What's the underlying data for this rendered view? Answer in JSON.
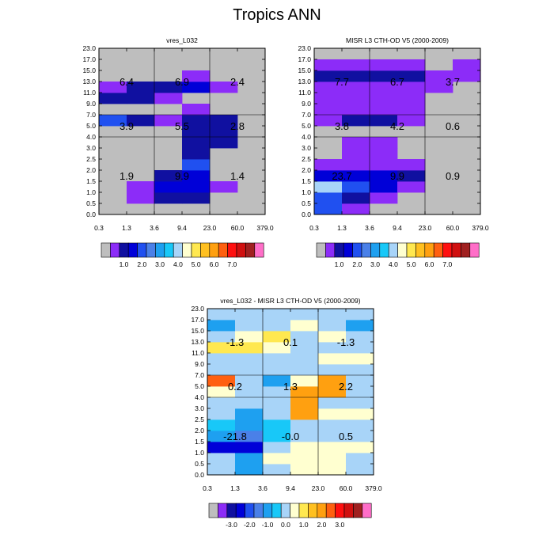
{
  "title": "Tropics ANN",
  "colors": {
    "gray": "#bebebe",
    "outline": "#000000",
    "grid": "#000000"
  },
  "chart_data": [
    {
      "id": "p1",
      "type": "heatmap",
      "title": "vres_L032",
      "x_ticks": [
        "0.3",
        "1.3",
        "3.6",
        "9.4",
        "23.0",
        "60.0",
        "379.0"
      ],
      "y_ticks": [
        "0.0",
        "0.5",
        "1.0",
        "1.5",
        "2.0",
        "2.5",
        "3.0",
        "4.0",
        "5.0",
        "7.0",
        "9.0",
        "11.0",
        "13.0",
        "15.0",
        "17.0",
        "23.0"
      ],
      "cells": [
        {
          "r": 0,
          "c": 1,
          "v": 0
        },
        {
          "r": 0,
          "c": 2,
          "v": 0
        },
        {
          "r": 0,
          "c": 3,
          "v": 0
        },
        {
          "r": 1,
          "c": 1,
          "v": 1.0
        },
        {
          "r": 1,
          "c": 2,
          "v": 1.5
        },
        {
          "r": 1,
          "c": 3,
          "v": 2.0
        },
        {
          "r": 2,
          "c": 1,
          "v": 1.0
        },
        {
          "r": 2,
          "c": 2,
          "v": 2.5
        },
        {
          "r": 2,
          "c": 3,
          "v": 2.5
        },
        {
          "r": 2,
          "c": 4,
          "v": 1.0
        },
        {
          "r": 3,
          "c": 2,
          "v": 2.0
        },
        {
          "r": 3,
          "c": 3,
          "v": 2.5
        },
        {
          "r": 4,
          "c": 3,
          "v": 3.0
        },
        {
          "r": 5,
          "c": 3,
          "v": 2.0
        },
        {
          "r": 6,
          "c": 3,
          "v": 2.0
        },
        {
          "r": 6,
          "c": 4,
          "v": 2.0
        },
        {
          "r": 7,
          "c": 3,
          "v": 2.0
        },
        {
          "r": 7,
          "c": 4,
          "v": 2.0
        },
        {
          "r": 8,
          "c": 0,
          "v": 3.0
        },
        {
          "r": 8,
          "c": 1,
          "v": 2.0
        },
        {
          "r": 8,
          "c": 2,
          "v": 1.0
        },
        {
          "r": 8,
          "c": 3,
          "v": 2.0
        },
        {
          "r": 8,
          "c": 4,
          "v": 2.0
        },
        {
          "r": 9,
          "c": 3,
          "v": 1.0
        },
        {
          "r": 10,
          "c": 0,
          "v": 2.0
        },
        {
          "r": 10,
          "c": 1,
          "v": 2.0
        },
        {
          "r": 10,
          "c": 2,
          "v": 1.0
        },
        {
          "r": 11,
          "c": 0,
          "v": 1.0
        },
        {
          "r": 11,
          "c": 1,
          "v": 2.0
        },
        {
          "r": 11,
          "c": 2,
          "v": 2.0
        },
        {
          "r": 11,
          "c": 3,
          "v": 2.5
        },
        {
          "r": 11,
          "c": 4,
          "v": 1.0
        },
        {
          "r": 12,
          "c": 3,
          "v": 1.0
        }
      ],
      "box_labels": [
        {
          "col": 0,
          "group": "low",
          "text": "1.9"
        },
        {
          "col": 1,
          "group": "low",
          "text": "9.9"
        },
        {
          "col": 2,
          "group": "low",
          "text": "1.4"
        },
        {
          "col": 0,
          "group": "mid",
          "text": "3.9"
        },
        {
          "col": 1,
          "group": "mid",
          "text": "5.5"
        },
        {
          "col": 2,
          "group": "mid",
          "text": "2.8"
        },
        {
          "col": 0,
          "group": "high",
          "text": "6.4"
        },
        {
          "col": 1,
          "group": "high",
          "text": "6.9"
        },
        {
          "col": 2,
          "group": "high",
          "text": "2.4"
        }
      ],
      "colorbar": {
        "colors": [
          "#bebebe",
          "#8c2cf8",
          "#1010a0",
          "#0000d8",
          "#2050f0",
          "#4a80e8",
          "#1ea0f0",
          "#18c8f8",
          "#a8d4f8",
          "#ffffd0",
          "#ffe850",
          "#ffc020",
          "#ffa010",
          "#ff6010",
          "#ff1010",
          "#d01010",
          "#a02020",
          "#ff6ec8"
        ],
        "labels": [
          "1.0",
          "2.0",
          "3.0",
          "4.0",
          "5.0",
          "6.0",
          "7.0"
        ]
      }
    },
    {
      "id": "p2",
      "type": "heatmap",
      "title": "MISR L3 CTH-OD V5 (2000-2009)",
      "x_ticks": [
        "0.3",
        "1.3",
        "3.6",
        "9.4",
        "23.0",
        "60.0",
        "379.0"
      ],
      "y_ticks": [
        "0.0",
        "0.5",
        "1.0",
        "1.5",
        "2.0",
        "2.5",
        "3.0",
        "4.0",
        "5.0",
        "7.0",
        "9.0",
        "11.0",
        "13.0",
        "15.0",
        "17.0",
        "23.0"
      ],
      "cells": [
        {
          "r": 0,
          "c": 0,
          "v": 3.0
        },
        {
          "r": 0,
          "c": 1,
          "v": 1.0
        },
        {
          "r": 0,
          "c": 2,
          "v": 0
        },
        {
          "r": 1,
          "c": 0,
          "v": 3.0
        },
        {
          "r": 1,
          "c": 1,
          "v": 2.0
        },
        {
          "r": 1,
          "c": 2,
          "v": 1.0
        },
        {
          "r": 2,
          "c": 0,
          "v": 4.0
        },
        {
          "r": 2,
          "c": 1,
          "v": 3.0
        },
        {
          "r": 2,
          "c": 2,
          "v": 2.5
        },
        {
          "r": 2,
          "c": 3,
          "v": 1.0
        },
        {
          "r": 3,
          "c": 0,
          "v": 2.5
        },
        {
          "r": 3,
          "c": 1,
          "v": 2.5
        },
        {
          "r": 3,
          "c": 2,
          "v": 2.5
        },
        {
          "r": 3,
          "c": 3,
          "v": 2.0
        },
        {
          "r": 4,
          "c": 0,
          "v": 1.0
        },
        {
          "r": 4,
          "c": 1,
          "v": 1.0
        },
        {
          "r": 4,
          "c": 2,
          "v": 1.0
        },
        {
          "r": 4,
          "c": 3,
          "v": 1.0
        },
        {
          "r": 5,
          "c": 1,
          "v": 1.0
        },
        {
          "r": 5,
          "c": 2,
          "v": 1.0
        },
        {
          "r": 6,
          "c": 1,
          "v": 1.0
        },
        {
          "r": 6,
          "c": 2,
          "v": 1.0
        },
        {
          "r": 8,
          "c": 0,
          "v": 1.0
        },
        {
          "r": 8,
          "c": 1,
          "v": 2.0
        },
        {
          "r": 8,
          "c": 2,
          "v": 2.0
        },
        {
          "r": 8,
          "c": 3,
          "v": 1.0
        },
        {
          "r": 9,
          "c": 0,
          "v": 1.0
        },
        {
          "r": 9,
          "c": 1,
          "v": 1.0
        },
        {
          "r": 9,
          "c": 2,
          "v": 1.0
        },
        {
          "r": 9,
          "c": 3,
          "v": 1.0
        },
        {
          "r": 10,
          "c": 0,
          "v": 1.0
        },
        {
          "r": 10,
          "c": 1,
          "v": 1.0
        },
        {
          "r": 10,
          "c": 2,
          "v": 1.0
        },
        {
          "r": 10,
          "c": 3,
          "v": 1.0
        },
        {
          "r": 11,
          "c": 0,
          "v": 1.0
        },
        {
          "r": 11,
          "c": 1,
          "v": 1.0
        },
        {
          "r": 11,
          "c": 2,
          "v": 1.0
        },
        {
          "r": 11,
          "c": 3,
          "v": 1.0
        },
        {
          "r": 11,
          "c": 4,
          "v": 1.0
        },
        {
          "r": 12,
          "c": 0,
          "v": 2.0
        },
        {
          "r": 12,
          "c": 1,
          "v": 2.0
        },
        {
          "r": 12,
          "c": 2,
          "v": 2.0
        },
        {
          "r": 12,
          "c": 3,
          "v": 2.0
        },
        {
          "r": 12,
          "c": 4,
          "v": 1.0
        },
        {
          "r": 12,
          "c": 5,
          "v": 1.0
        },
        {
          "r": 13,
          "c": 0,
          "v": 1.0
        },
        {
          "r": 13,
          "c": 1,
          "v": 1.0
        },
        {
          "r": 13,
          "c": 2,
          "v": 1.0
        },
        {
          "r": 13,
          "c": 3,
          "v": 1.0
        },
        {
          "r": 13,
          "c": 5,
          "v": 1.0
        }
      ],
      "box_labels": [
        {
          "col": 0,
          "group": "low",
          "text": "23.7"
        },
        {
          "col": 1,
          "group": "low",
          "text": "9.9"
        },
        {
          "col": 2,
          "group": "low",
          "text": "0.9"
        },
        {
          "col": 0,
          "group": "mid",
          "text": "3.8"
        },
        {
          "col": 1,
          "group": "mid",
          "text": "4.2"
        },
        {
          "col": 2,
          "group": "mid",
          "text": "0.6"
        },
        {
          "col": 0,
          "group": "high",
          "text": "7.7"
        },
        {
          "col": 1,
          "group": "high",
          "text": "6.7"
        },
        {
          "col": 2,
          "group": "high",
          "text": "3.7"
        }
      ],
      "colorbar": {
        "colors": [
          "#bebebe",
          "#8c2cf8",
          "#1010a0",
          "#0000d8",
          "#2050f0",
          "#4a80e8",
          "#1ea0f0",
          "#18c8f8",
          "#a8d4f8",
          "#ffffd0",
          "#ffe850",
          "#ffc020",
          "#ffa010",
          "#ff6010",
          "#ff1010",
          "#d01010",
          "#a02020",
          "#ff6ec8"
        ],
        "labels": [
          "1.0",
          "2.0",
          "3.0",
          "4.0",
          "5.0",
          "6.0",
          "7.0"
        ]
      }
    },
    {
      "id": "p3",
      "type": "heatmap",
      "title": "vres_L032 - MISR L3 CTH-OD V5 (2000-2009)",
      "x_ticks": [
        "0.3",
        "1.3",
        "3.6",
        "9.4",
        "23.0",
        "60.0",
        "379.0"
      ],
      "y_ticks": [
        "0.0",
        "0.5",
        "1.0",
        "1.5",
        "2.0",
        "2.5",
        "3.0",
        "4.0",
        "5.0",
        "7.0",
        "9.0",
        "11.0",
        "13.0",
        "15.0",
        "17.0",
        "23.0"
      ],
      "cells": [
        {
          "r": 0,
          "c": 0,
          "v": -0.1
        },
        {
          "r": 0,
          "c": 1,
          "v": -1.2
        },
        {
          "r": 0,
          "c": 2,
          "v": -0.1
        },
        {
          "r": 0,
          "c": 3,
          "v": 0.1
        },
        {
          "r": 0,
          "c": 4,
          "v": 0.1
        },
        {
          "r": 0,
          "c": 5,
          "v": -0.1
        },
        {
          "r": 1,
          "c": 0,
          "v": -0.1
        },
        {
          "r": 1,
          "c": 1,
          "v": -0.6
        },
        {
          "r": 1,
          "c": 2,
          "v": 0.1
        },
        {
          "r": 1,
          "c": 3,
          "v": 0.1
        },
        {
          "r": 1,
          "c": 4,
          "v": 0.1
        },
        {
          "r": 1,
          "c": 5,
          "v": -0.1
        },
        {
          "r": 2,
          "c": 0,
          "v": -3.5
        },
        {
          "r": 2,
          "c": 1,
          "v": -3.5
        },
        {
          "r": 2,
          "c": 2,
          "v": -0.1
        },
        {
          "r": 2,
          "c": 3,
          "v": 0.1
        },
        {
          "r": 2,
          "c": 4,
          "v": 0.1
        },
        {
          "r": 2,
          "c": 5,
          "v": 0.1
        },
        {
          "r": 3,
          "c": 0,
          "v": -1.2
        },
        {
          "r": 3,
          "c": 1,
          "v": -1.5
        },
        {
          "r": 3,
          "c": 2,
          "v": -0.8
        },
        {
          "r": 3,
          "c": 3,
          "v": -0.1
        },
        {
          "r": 3,
          "c": 4,
          "v": -0.1
        },
        {
          "r": 3,
          "c": 5,
          "v": -0.1
        },
        {
          "r": 4,
          "c": 0,
          "v": -0.8
        },
        {
          "r": 4,
          "c": 1,
          "v": -0.6
        },
        {
          "r": 4,
          "c": 2,
          "v": -0.8
        },
        {
          "r": 4,
          "c": 3,
          "v": -0.1
        },
        {
          "r": 4,
          "c": 4,
          "v": -0.1
        },
        {
          "r": 4,
          "c": 5,
          "v": -0.1
        },
        {
          "r": 5,
          "c": 0,
          "v": -0.1
        },
        {
          "r": 5,
          "c": 1,
          "v": -0.6
        },
        {
          "r": 5,
          "c": 2,
          "v": -0.1
        },
        {
          "r": 5,
          "c": 3,
          "v": 1.5
        },
        {
          "r": 5,
          "c": 4,
          "v": 0.1
        },
        {
          "r": 5,
          "c": 5,
          "v": 0.1
        },
        {
          "r": 6,
          "c": 0,
          "v": -0.1
        },
        {
          "r": 6,
          "c": 1,
          "v": -0.1
        },
        {
          "r": 6,
          "c": 2,
          "v": -0.1
        },
        {
          "r": 6,
          "c": 3,
          "v": 1.5
        },
        {
          "r": 6,
          "c": 4,
          "v": -0.1
        },
        {
          "r": 6,
          "c": 5,
          "v": -0.1
        },
        {
          "r": 7,
          "c": 0,
          "v": 0.1
        },
        {
          "r": 7,
          "c": 1,
          "v": -0.1
        },
        {
          "r": 7,
          "c": 2,
          "v": -0.1
        },
        {
          "r": 7,
          "c": 3,
          "v": 1.0
        },
        {
          "r": 7,
          "c": 4,
          "v": 1.5
        },
        {
          "r": 7,
          "c": 5,
          "v": -0.1
        },
        {
          "r": 8,
          "c": 0,
          "v": 2.5
        },
        {
          "r": 8,
          "c": 1,
          "v": -0.1
        },
        {
          "r": 8,
          "c": 2,
          "v": -0.6
        },
        {
          "r": 8,
          "c": 3,
          "v": 0.1
        },
        {
          "r": 8,
          "c": 4,
          "v": 1.0
        },
        {
          "r": 8,
          "c": 5,
          "v": -0.1
        },
        {
          "r": 9,
          "c": 0,
          "v": -0.1
        },
        {
          "r": 9,
          "c": 1,
          "v": -0.1
        },
        {
          "r": 9,
          "c": 2,
          "v": -0.1
        },
        {
          "r": 9,
          "c": 3,
          "v": -0.1
        },
        {
          "r": 9,
          "c": 4,
          "v": -0.1
        },
        {
          "r": 9,
          "c": 5,
          "v": -0.1
        },
        {
          "r": 10,
          "c": 0,
          "v": -0.1
        },
        {
          "r": 10,
          "c": 1,
          "v": -0.1
        },
        {
          "r": 10,
          "c": 2,
          "v": -0.1
        },
        {
          "r": 10,
          "c": 3,
          "v": -0.1
        },
        {
          "r": 10,
          "c": 4,
          "v": 0.1
        },
        {
          "r": 10,
          "c": 5,
          "v": 0.1
        },
        {
          "r": 11,
          "c": 0,
          "v": 0.8
        },
        {
          "r": 11,
          "c": 1,
          "v": 0.8
        },
        {
          "r": 11,
          "c": 2,
          "v": 0.1
        },
        {
          "r": 11,
          "c": 3,
          "v": -0.1
        },
        {
          "r": 11,
          "c": 4,
          "v": -0.1
        },
        {
          "r": 11,
          "c": 5,
          "v": -0.1
        },
        {
          "r": 12,
          "c": 0,
          "v": -0.1
        },
        {
          "r": 12,
          "c": 1,
          "v": 0.1
        },
        {
          "r": 12,
          "c": 2,
          "v": 0.8
        },
        {
          "r": 12,
          "c": 3,
          "v": -0.1
        },
        {
          "r": 12,
          "c": 4,
          "v": 0.1
        },
        {
          "r": 12,
          "c": 5,
          "v": -0.1
        },
        {
          "r": 13,
          "c": 0,
          "v": -0.6
        },
        {
          "r": 13,
          "c": 1,
          "v": -0.1
        },
        {
          "r": 13,
          "c": 2,
          "v": -0.1
        },
        {
          "r": 13,
          "c": 3,
          "v": 0.1
        },
        {
          "r": 13,
          "c": 4,
          "v": -0.1
        },
        {
          "r": 13,
          "c": 5,
          "v": -0.6
        },
        {
          "r": 14,
          "c": 0,
          "v": -0.1
        },
        {
          "r": 14,
          "c": 1,
          "v": -0.1
        },
        {
          "r": 14,
          "c": 2,
          "v": -0.1
        },
        {
          "r": 14,
          "c": 3,
          "v": -0.1
        },
        {
          "r": 14,
          "c": 4,
          "v": -0.1
        },
        {
          "r": 14,
          "c": 5,
          "v": -0.1
        }
      ],
      "box_labels": [
        {
          "col": 0,
          "group": "low",
          "text": "-21.8"
        },
        {
          "col": 1,
          "group": "low",
          "text": "-0.0"
        },
        {
          "col": 2,
          "group": "low",
          "text": "0.5"
        },
        {
          "col": 0,
          "group": "mid",
          "text": "0.2"
        },
        {
          "col": 1,
          "group": "mid",
          "text": "1.3"
        },
        {
          "col": 2,
          "group": "mid",
          "text": "2.2"
        },
        {
          "col": 0,
          "group": "high",
          "text": "-1.3"
        },
        {
          "col": 1,
          "group": "high",
          "text": "0.1"
        },
        {
          "col": 2,
          "group": "high",
          "text": "-1.3"
        }
      ],
      "colorbar": {
        "colors": [
          "#bebebe",
          "#8c2cf8",
          "#1010a0",
          "#0000d8",
          "#2050f0",
          "#4a80e8",
          "#1ea0f0",
          "#18c8f8",
          "#a8d4f8",
          "#ffffd0",
          "#ffe850",
          "#ffc020",
          "#ffa010",
          "#ff6010",
          "#ff1010",
          "#d01010",
          "#a02020",
          "#ff6ec8"
        ],
        "labels": [
          "-3.0",
          "-2.0",
          "-1.0",
          "0.0",
          "1.0",
          "2.0",
          "3.0"
        ]
      }
    }
  ]
}
